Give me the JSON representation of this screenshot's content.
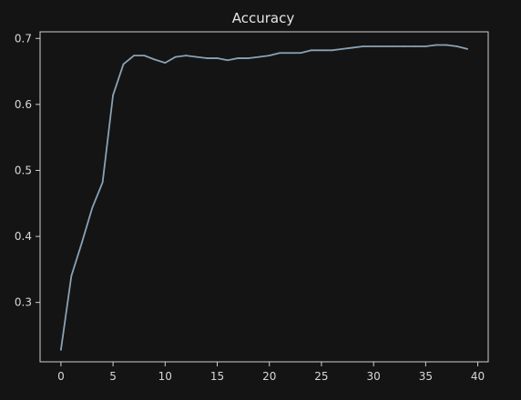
{
  "chart_data": {
    "type": "line",
    "title": "Accuracy",
    "xlabel": "",
    "ylabel": "",
    "xlim": [
      -2,
      41
    ],
    "ylim": [
      0.21,
      0.71
    ],
    "xticks": [
      0,
      5,
      10,
      15,
      20,
      25,
      30,
      35,
      40
    ],
    "yticks": [
      0.3,
      0.4,
      0.5,
      0.6,
      0.7
    ],
    "grid": false,
    "series": [
      {
        "color": "#8aa2b5",
        "x": [
          0,
          1,
          2,
          3,
          4,
          5,
          6,
          7,
          8,
          9,
          10,
          11,
          12,
          13,
          14,
          15,
          16,
          17,
          18,
          19,
          20,
          21,
          22,
          23,
          24,
          25,
          26,
          27,
          28,
          29,
          30,
          31,
          32,
          33,
          34,
          35,
          36,
          37,
          38,
          39
        ],
        "y": [
          0.228,
          0.34,
          0.39,
          0.443,
          0.482,
          0.614,
          0.661,
          0.674,
          0.674,
          0.668,
          0.663,
          0.672,
          0.674,
          0.672,
          0.67,
          0.67,
          0.667,
          0.67,
          0.67,
          0.672,
          0.674,
          0.678,
          0.678,
          0.678,
          0.682,
          0.682,
          0.682,
          0.684,
          0.686,
          0.688,
          0.688,
          0.688,
          0.688,
          0.688,
          0.688,
          0.688,
          0.69,
          0.69,
          0.688,
          0.684
        ]
      }
    ]
  },
  "colors": {
    "background": "#141414",
    "axes": "#d0d0d0",
    "text": "#d8d8d8"
  }
}
